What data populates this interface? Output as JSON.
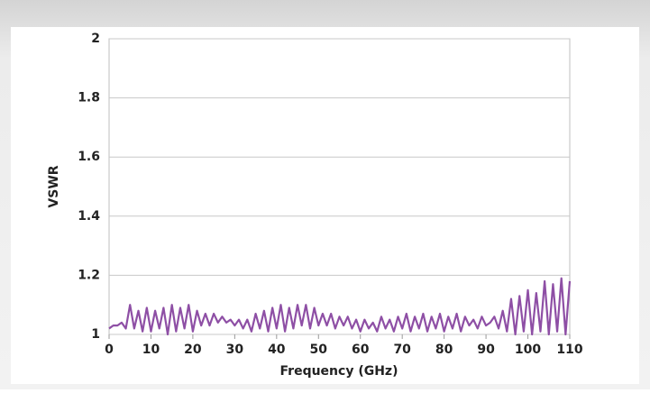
{
  "chart_data": {
    "type": "line",
    "xlabel": "Frequency (GHz)",
    "ylabel": "VSWR",
    "x": [
      0,
      1,
      2,
      3,
      4,
      5,
      6,
      7,
      8,
      9,
      10,
      11,
      12,
      13,
      14,
      15,
      16,
      17,
      18,
      19,
      20,
      21,
      22,
      23,
      24,
      25,
      26,
      27,
      28,
      29,
      30,
      31,
      32,
      33,
      34,
      35,
      36,
      37,
      38,
      39,
      40,
      41,
      42,
      43,
      44,
      45,
      46,
      47,
      48,
      49,
      50,
      51,
      52,
      53,
      54,
      55,
      56,
      57,
      58,
      59,
      60,
      61,
      62,
      63,
      64,
      65,
      66,
      67,
      68,
      69,
      70,
      71,
      72,
      73,
      74,
      75,
      76,
      77,
      78,
      79,
      80,
      81,
      82,
      83,
      84,
      85,
      86,
      87,
      88,
      89,
      90,
      91,
      92,
      93,
      94,
      95,
      96,
      97,
      98,
      99,
      100,
      101,
      102,
      103,
      104,
      105,
      106,
      107,
      108,
      109,
      110
    ],
    "series": [
      {
        "name": "VSWR",
        "color": "#8e4fa5",
        "values": [
          1.02,
          1.03,
          1.03,
          1.04,
          1.02,
          1.1,
          1.02,
          1.08,
          1.01,
          1.09,
          1.01,
          1.08,
          1.02,
          1.09,
          1.0,
          1.1,
          1.01,
          1.09,
          1.02,
          1.1,
          1.01,
          1.08,
          1.03,
          1.07,
          1.03,
          1.07,
          1.04,
          1.06,
          1.04,
          1.05,
          1.03,
          1.05,
          1.02,
          1.05,
          1.01,
          1.07,
          1.02,
          1.08,
          1.01,
          1.09,
          1.02,
          1.1,
          1.01,
          1.09,
          1.02,
          1.1,
          1.03,
          1.1,
          1.02,
          1.09,
          1.03,
          1.07,
          1.03,
          1.07,
          1.02,
          1.06,
          1.03,
          1.06,
          1.02,
          1.05,
          1.01,
          1.05,
          1.02,
          1.04,
          1.01,
          1.06,
          1.02,
          1.05,
          1.01,
          1.06,
          1.02,
          1.07,
          1.01,
          1.06,
          1.02,
          1.07,
          1.01,
          1.06,
          1.02,
          1.07,
          1.01,
          1.06,
          1.02,
          1.07,
          1.01,
          1.06,
          1.03,
          1.05,
          1.02,
          1.06,
          1.03,
          1.04,
          1.06,
          1.02,
          1.08,
          1.01,
          1.12,
          1.0,
          1.13,
          1.01,
          1.15,
          1.0,
          1.14,
          1.01,
          1.18,
          1.0,
          1.17,
          1.01,
          1.19,
          1.0,
          1.18
        ]
      }
    ],
    "xlim": [
      0,
      110
    ],
    "xticks": [
      0,
      10,
      20,
      30,
      40,
      50,
      60,
      70,
      80,
      90,
      100,
      110
    ],
    "ylim": [
      1,
      2
    ],
    "yticks": [
      1,
      1.2,
      1.4,
      1.6,
      1.8,
      2
    ],
    "grid": true
  }
}
